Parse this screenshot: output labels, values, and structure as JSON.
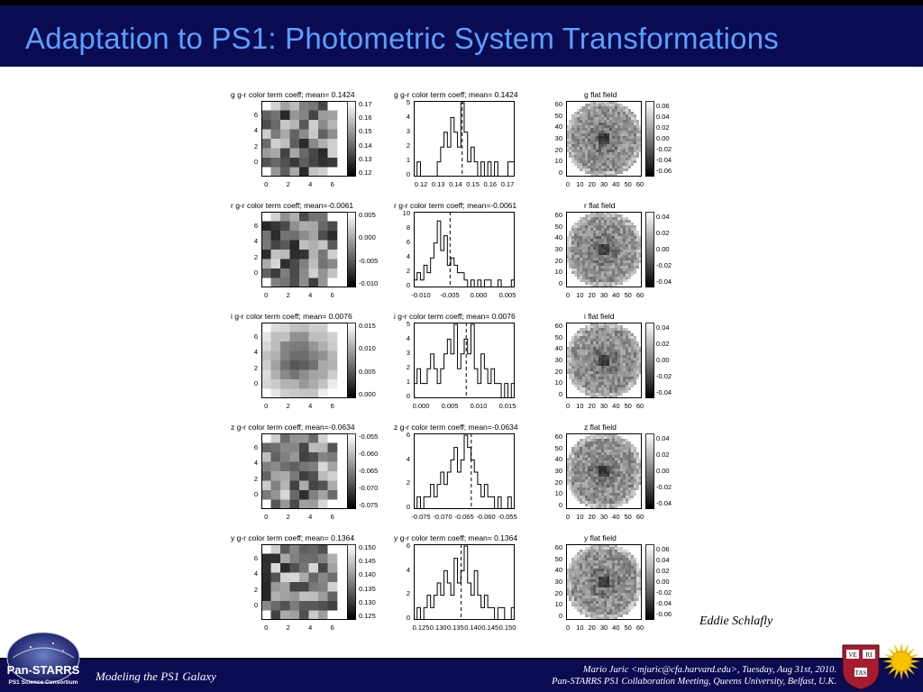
{
  "slide": {
    "title": "Adaptation to PS1: Photometric System Transformations",
    "credit": "Eddie Schlafly",
    "footer_left": "Modeling the PS1 Galaxy",
    "footer_right_line1": "Mario Juric <mjuric@cfa.harvard.edu>, Tuesday, Aug 31st, 2010.",
    "footer_right_line2": "Pan-STARRS PS1 Collaboration Meeting, Queens University, Belfast, U.K.",
    "logo_text": "Pan-STARRS",
    "logo_subtext": "PS1 Science Consortium",
    "shield_text": [
      "VE",
      "RI",
      "TAS"
    ]
  },
  "chart_data": [
    {
      "band": "g",
      "map": {
        "type": "heatmap",
        "title": "g g-r color term coeff; mean= 0.1424",
        "colorbar_ticks": [
          "0.17",
          "0.16",
          "0.15",
          "0.14",
          "0.13",
          "0.12"
        ],
        "x_ticks": [
          "0",
          "2",
          "4",
          "6"
        ],
        "y_ticks": [
          "6",
          "4",
          "2",
          "0"
        ]
      },
      "hist": {
        "type": "bar",
        "title": "g g-r color term coeff; mean= 0.1424",
        "x_ticks": [
          "0.12",
          "0.13",
          "0.14",
          "0.15",
          "0.16",
          "0.17"
        ],
        "y_ticks": [
          "5",
          "4",
          "3",
          "2",
          "1",
          "0"
        ],
        "ymax": 5,
        "mean_frac": 0.48,
        "bars": [
          0,
          1,
          0,
          0,
          0,
          0,
          0,
          1,
          2,
          3,
          2,
          4,
          3,
          2,
          5,
          3,
          1,
          2,
          1,
          0,
          1,
          0,
          1,
          0,
          1,
          0,
          0,
          0,
          1,
          1
        ]
      },
      "flat": {
        "type": "heatmap",
        "title": "g flat field",
        "x_ticks": [
          "0",
          "10",
          "20",
          "30",
          "40",
          "50",
          "60"
        ],
        "y_ticks": [
          "60",
          "50",
          "40",
          "30",
          "20",
          "10",
          "0"
        ],
        "colorbar_ticks": [
          "0.06",
          "0.04",
          "0.02",
          "0.00",
          "-0.02",
          "-0.04",
          "-0.06"
        ]
      }
    },
    {
      "band": "r",
      "map": {
        "type": "heatmap",
        "title": "r g-r color term coeff; mean=-0.0061",
        "colorbar_ticks": [
          "0.005",
          "0.000",
          "-0.005",
          "-0.010"
        ],
        "x_ticks": [
          "0",
          "2",
          "4",
          "6"
        ],
        "y_ticks": [
          "6",
          "4",
          "2",
          "0"
        ]
      },
      "hist": {
        "type": "bar",
        "title": "r g-r color term coeff; mean=-0.0061",
        "x_ticks": [
          "-0.010",
          "-0.005",
          "0.000",
          "0.005"
        ],
        "y_ticks": [
          "10",
          "8",
          "6",
          "4",
          "2",
          "0"
        ],
        "ymax": 10,
        "mean_frac": 0.36,
        "bars": [
          1,
          2,
          1,
          3,
          2,
          4,
          6,
          9,
          5,
          7,
          3,
          4,
          3,
          2,
          2,
          1,
          0,
          1,
          0,
          1,
          0,
          1,
          1,
          0,
          0,
          1,
          0,
          0,
          0,
          1
        ]
      },
      "flat": {
        "type": "heatmap",
        "title": "r flat field",
        "x_ticks": [
          "0",
          "10",
          "20",
          "30",
          "40",
          "50",
          "60"
        ],
        "y_ticks": [
          "60",
          "50",
          "40",
          "30",
          "20",
          "10",
          "0"
        ],
        "colorbar_ticks": [
          "0.04",
          "0.02",
          "0.00",
          "-0.02",
          "-0.04"
        ]
      }
    },
    {
      "band": "i",
      "map": {
        "type": "heatmap",
        "title": "i g-r color term coeff; mean= 0.0076",
        "colorbar_ticks": [
          "0.015",
          "0.010",
          "0.005",
          "0.000"
        ],
        "x_ticks": [
          "0",
          "2",
          "4",
          "6"
        ],
        "y_ticks": [
          "6",
          "4",
          "2",
          "0"
        ]
      },
      "hist": {
        "type": "bar",
        "title": "i g-r color term coeff; mean= 0.0076",
        "x_ticks": [
          "0.000",
          "0.005",
          "0.010",
          "0.015"
        ],
        "y_ticks": [
          "5",
          "4",
          "3",
          "2",
          "1",
          "0"
        ],
        "ymax": 5,
        "mean_frac": 0.52,
        "bars": [
          1,
          2,
          1,
          1,
          2,
          3,
          2,
          1,
          2,
          3,
          4,
          3,
          5,
          2,
          3,
          4,
          3,
          5,
          2,
          1,
          3,
          2,
          1,
          2,
          1,
          1,
          0,
          1,
          0,
          1
        ]
      },
      "flat": {
        "type": "heatmap",
        "title": "i flat field",
        "x_ticks": [
          "0",
          "10",
          "20",
          "30",
          "40",
          "50",
          "60"
        ],
        "y_ticks": [
          "60",
          "50",
          "40",
          "30",
          "20",
          "10",
          "0"
        ],
        "colorbar_ticks": [
          "0.04",
          "0.02",
          "0.00",
          "-0.02",
          "-0.04"
        ]
      }
    },
    {
      "band": "z",
      "map": {
        "type": "heatmap",
        "title": "z g-r color term coeff; mean=-0.0634",
        "colorbar_ticks": [
          "-0.055",
          "-0.060",
          "-0.065",
          "-0.070",
          "-0.075"
        ],
        "x_ticks": [
          "0",
          "2",
          "4",
          "6"
        ],
        "y_ticks": [
          "6",
          "4",
          "2",
          "0"
        ]
      },
      "hist": {
        "type": "bar",
        "title": "z g-r color term coeff; mean=-0.0634",
        "x_ticks": [
          "-0.075",
          "-0.070",
          "-0.065",
          "-0.060",
          "-0.055"
        ],
        "y_ticks": [
          "6",
          "4",
          "2",
          "0"
        ],
        "ymax": 6,
        "mean_frac": 0.57,
        "bars": [
          0,
          1,
          0,
          1,
          1,
          2,
          1,
          2,
          3,
          2,
          3,
          4,
          5,
          3,
          4,
          6,
          5,
          4,
          3,
          2,
          1,
          2,
          1,
          1,
          0,
          1,
          0,
          0,
          1,
          0
        ]
      },
      "flat": {
        "type": "heatmap",
        "title": "z flat field",
        "x_ticks": [
          "0",
          "10",
          "20",
          "30",
          "40",
          "50",
          "60"
        ],
        "y_ticks": [
          "60",
          "50",
          "40",
          "30",
          "20",
          "10",
          "0"
        ],
        "colorbar_ticks": [
          "0.04",
          "0.02",
          "0.00",
          "-0.02",
          "-0.04"
        ]
      }
    },
    {
      "band": "y",
      "map": {
        "type": "heatmap",
        "title": "y g-r color term coeff; mean= 0.1364",
        "colorbar_ticks": [
          "0.150",
          "0.145",
          "0.140",
          "0.135",
          "0.130",
          "0.125"
        ],
        "x_ticks": [
          "0",
          "2",
          "4",
          "6"
        ],
        "y_ticks": [
          "6",
          "4",
          "2",
          "0"
        ]
      },
      "hist": {
        "type": "bar",
        "title": "y g-r color term coeff; mean= 0.1364",
        "x_ticks": [
          "0.125",
          "0.130",
          "0.135",
          "0.140",
          "0.145",
          "0.150"
        ],
        "y_ticks": [
          "6",
          "4",
          "2",
          "0"
        ],
        "ymax": 6,
        "mean_frac": 0.47,
        "bars": [
          0,
          1,
          0,
          1,
          2,
          1,
          2,
          3,
          2,
          4,
          3,
          2,
          5,
          3,
          4,
          6,
          3,
          2,
          4,
          2,
          1,
          2,
          1,
          1,
          0,
          1,
          1,
          0,
          0,
          1
        ]
      },
      "flat": {
        "type": "heatmap",
        "title": "y flat field",
        "x_ticks": [
          "0",
          "10",
          "20",
          "30",
          "40",
          "50",
          "60"
        ],
        "y_ticks": [
          "60",
          "50",
          "40",
          "30",
          "20",
          "10",
          "0"
        ],
        "colorbar_ticks": [
          "0.06",
          "0.04",
          "0.02",
          "0.00",
          "-0.02",
          "-0.04",
          "-0.06"
        ]
      }
    }
  ]
}
